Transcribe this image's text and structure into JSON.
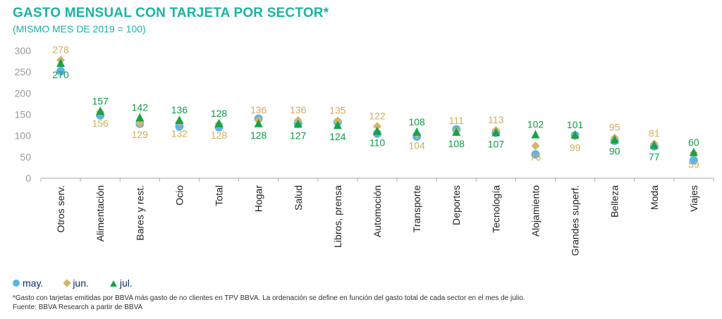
{
  "title": "GASTO MENSUAL CON TARJETA POR SECTOR*",
  "subtitle": "(MISMO MES DE 2019 = 100)",
  "legend": {
    "may": "may.",
    "jun": "jun.",
    "jul": "jul."
  },
  "footnote": "*Gasto con tarjetas emitidas por BBVA más gasto de no clientes en TPV BBVA. La ordenación se define en función del gasto total de cada sector en el mes de julio.",
  "source": "Fuente: BBVA Research a partir de BBVA",
  "colors": {
    "may": "#5bb3e8",
    "jun": "#d4b56a",
    "jul": "#17a34a",
    "jun_label": "#d2ac5e",
    "jul_label": "#0f9a46",
    "title": "#1bb3a7",
    "axis": "#aaaaaa"
  },
  "chart_data": {
    "type": "scatter",
    "categories": [
      "Otros serv.",
      "Alimentación",
      "Bares y rest.",
      "Ocio",
      "Total",
      "Hogar",
      "Salud",
      "Libros, prensa",
      "Automoción",
      "Transporte",
      "Deportes",
      "Tecnología",
      "Alojamiento",
      "Grandes superf.",
      "Belleza",
      "Moda",
      "Viajes"
    ],
    "ylim": [
      0,
      300
    ],
    "yticks": [
      0,
      50,
      100,
      150,
      200,
      250,
      300
    ],
    "grid": false,
    "legend_position": "bottom-left",
    "series": [
      {
        "name": "may.",
        "marker": "circle",
        "values": [
          252,
          148,
          128,
          122,
          120,
          140,
          128,
          132,
          105,
          98,
          115,
          107,
          56,
          101,
          88,
          75,
          42
        ]
      },
      {
        "name": "jun.",
        "marker": "diamond",
        "values": [
          278,
          156,
          129,
          132,
          128,
          136,
          136,
          135,
          122,
          104,
          111,
          113,
          76,
          99,
          95,
          81,
          59
        ]
      },
      {
        "name": "jul.",
        "marker": "triangle",
        "values": [
          270,
          157,
          142,
          136,
          128,
          128,
          127,
          124,
          110,
          108,
          108,
          107,
          102,
          101,
          90,
          77,
          60
        ]
      }
    ],
    "labels": [
      {
        "jun": "278",
        "jul": "270"
      },
      {
        "jun": "156",
        "jul": "157"
      },
      {
        "jun": "129",
        "jul": "142"
      },
      {
        "jun": "132",
        "jul": "136"
      },
      {
        "jun": "128",
        "jul": "128"
      },
      {
        "jun": "136",
        "jul": "128"
      },
      {
        "jun": "136",
        "jul": "127"
      },
      {
        "jun": "135",
        "jul": "124"
      },
      {
        "jun": "122",
        "jul": "110"
      },
      {
        "jun": "104",
        "jul": "108"
      },
      {
        "jun": "111",
        "jul": "108"
      },
      {
        "jun": "113",
        "jul": "107"
      },
      {
        "jun": "76",
        "jul": "102"
      },
      {
        "jun": "99",
        "jul": "101"
      },
      {
        "jun": "95",
        "jul": "90"
      },
      {
        "jun": "81",
        "jul": "77"
      },
      {
        "jun": "59",
        "jul": "60"
      }
    ]
  }
}
